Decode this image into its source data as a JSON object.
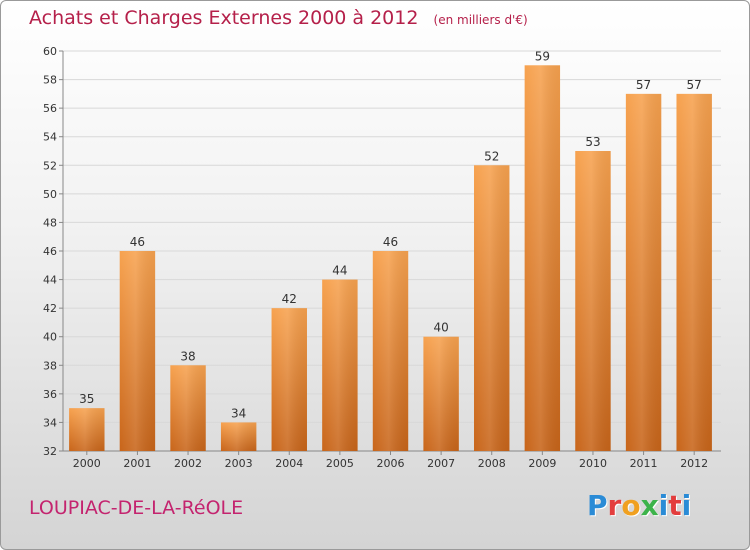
{
  "header": {
    "title": "Achats et Charges Externes 2000 à 2012",
    "unit": "(en milliers d'€)"
  },
  "footer": {
    "town": "LOUPIAC-DE-LA-RéOLE",
    "logo_letters": [
      "P",
      "r",
      "o",
      "x",
      "i",
      "t",
      "i"
    ],
    "logo_colors": [
      "#2a8bd6",
      "#e33d3d",
      "#f0a020",
      "#3cb34a",
      "#2a8bd6",
      "#e33d3d",
      "#2a8bd6"
    ]
  },
  "colors": {
    "title": "#b5204a",
    "town": "#c4246f",
    "bar_light": "#f7a24f",
    "bar_dark": "#c8651a",
    "grid": "#d8d8d8"
  },
  "chart_data": {
    "type": "bar",
    "title": "Achats et Charges Externes 2000 à 2012",
    "subtitle": "(en milliers d'€)",
    "categories": [
      "2000",
      "2001",
      "2002",
      "2003",
      "2004",
      "2005",
      "2006",
      "2007",
      "2008",
      "2009",
      "2010",
      "2011",
      "2012"
    ],
    "values": [
      35,
      46,
      38,
      34,
      42,
      44,
      46,
      40,
      52,
      59,
      53,
      57,
      57
    ],
    "ylim": [
      32,
      60
    ],
    "yticks": [
      32,
      34,
      36,
      38,
      40,
      42,
      44,
      46,
      48,
      50,
      52,
      54,
      56,
      58,
      60
    ],
    "grid": true,
    "legend": "none"
  }
}
